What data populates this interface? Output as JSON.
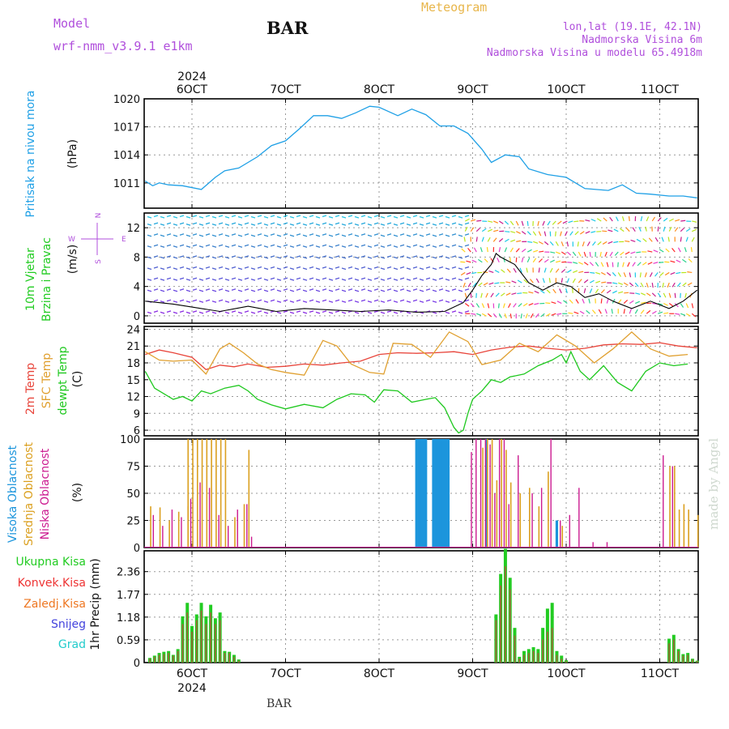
{
  "header": {
    "model_label": "Model",
    "model_name": "wrf-nmm_v3.9.1  e1km",
    "title": "BAR",
    "meteogram": "Meteogram",
    "location": "lon,lat (19.1E, 42.1N)",
    "elevation": "Nadmorska Visina 6m",
    "model_elevation": "Nadmorska Visina u modelu 65.4918m",
    "bottom_label": "BAR",
    "watermark": "made by Angel"
  },
  "colors": {
    "magenta": "#b04fdc",
    "gold": "#e8b64b",
    "pressure": "#1fa0e6",
    "t2m": "#e8443a",
    "sfc": "#e0a030",
    "dewpt": "#1ec81e",
    "high_cloud": "#1c95dc",
    "mid_cloud": "#dba020",
    "low_cloud": "#cc1b90",
    "precip_total": "#22cc22",
    "precip_conv": "#ee3333",
    "precip_frozen": "#ee7722",
    "snow": "#4444dd",
    "hail": "#22cccc"
  },
  "time_axis": {
    "year": "2024",
    "ticks": [
      "6OCT",
      "7OCT",
      "8OCT",
      "9OCT",
      "10OCT",
      "11OCT"
    ]
  },
  "chart_data": [
    {
      "type": "line",
      "name": "pressure",
      "ylabel_lines": [
        "Pritisak na nivou mora",
        "(hPa)"
      ],
      "yticks": [
        "1011",
        "1014",
        "1017",
        "1020"
      ],
      "ylim": [
        1008.3,
        1020
      ],
      "x_unit": "days since 2024-10-06 00:00",
      "x": [
        -0.5,
        -0.42,
        -0.35,
        -0.25,
        -0.1,
        0.1,
        0.25,
        0.35,
        0.5,
        0.7,
        0.85,
        1.0,
        1.15,
        1.3,
        1.45,
        1.6,
        1.75,
        1.9,
        2.0,
        2.2,
        2.35,
        2.5,
        2.65,
        2.8,
        2.95,
        3.1,
        3.2,
        3.35,
        3.5,
        3.6,
        3.8,
        4.0,
        4.2,
        4.45,
        4.6,
        4.75,
        4.9,
        5.1,
        5.25,
        5.4,
        5.52,
        5.65,
        5.75
      ],
      "values": [
        1011.2,
        1010.7,
        1011.0,
        1010.8,
        1010.7,
        1010.3,
        1011.6,
        1012.3,
        1012.6,
        1013.8,
        1015.0,
        1015.5,
        1016.8,
        1018.2,
        1018.2,
        1017.9,
        1018.5,
        1019.2,
        1019.1,
        1018.2,
        1018.9,
        1018.3,
        1017.1,
        1017.1,
        1016.3,
        1014.6,
        1013.2,
        1014.0,
        1013.8,
        1012.5,
        1011.9,
        1011.6,
        1010.4,
        1010.2,
        1010.8,
        1009.9,
        1009.8,
        1009.6,
        1009.6,
        1009.4,
        1009.6,
        1010.2,
        1010.0
      ]
    },
    {
      "type": "line",
      "name": "wind",
      "ylabel_lines": [
        "10m Vjetar",
        "Brzina i Pravac",
        "(m/s)"
      ],
      "compass": [
        "N",
        "W",
        "E",
        "S"
      ],
      "yticks": [
        "0",
        "4",
        "8",
        "12"
      ],
      "ylim": [
        -1,
        14
      ],
      "x": [
        -0.5,
        -0.2,
        0.0,
        0.3,
        0.6,
        0.9,
        1.2,
        1.5,
        1.8,
        2.1,
        2.4,
        2.7,
        2.9,
        3.0,
        3.1,
        3.2,
        3.25,
        3.3,
        3.45,
        3.6,
        3.75,
        3.9,
        4.05,
        4.2,
        4.35,
        4.5,
        4.7,
        4.9,
        5.1,
        5.25,
        5.4,
        5.6,
        5.75
      ],
      "values": [
        2.0,
        1.6,
        1.2,
        0.6,
        1.3,
        0.6,
        1.0,
        0.8,
        0.6,
        0.8,
        0.5,
        0.6,
        1.8,
        3.5,
        5.5,
        7.0,
        8.5,
        8.0,
        7.0,
        4.5,
        3.5,
        4.5,
        4.0,
        2.5,
        3.0,
        2.0,
        1.0,
        2.0,
        1.0,
        2.0,
        3.5,
        2.0,
        3.0
      ],
      "barb_rows": [
        0.5,
        2,
        3.5,
        5,
        6.5,
        8,
        9.5,
        11,
        12.5,
        13.5
      ]
    },
    {
      "type": "line",
      "name": "temperature",
      "ylabel_lines": [
        "2m Temp",
        "SFC Temp",
        "dewpt Temp",
        "(C)"
      ],
      "yticks": [
        "6",
        "9",
        "12",
        "15",
        "18",
        "21",
        "24"
      ],
      "ylim": [
        5,
        24.5
      ],
      "series": [
        {
          "name": "2m Temp",
          "color_key": "t2m",
          "x": [
            -0.5,
            -0.35,
            -0.2,
            0.0,
            0.15,
            0.3,
            0.45,
            0.6,
            0.8,
            1.0,
            1.2,
            1.4,
            1.6,
            1.8,
            2.0,
            2.2,
            2.4,
            2.6,
            2.8,
            3.0,
            3.2,
            3.4,
            3.6,
            3.8,
            4.0,
            4.2,
            4.4,
            4.6,
            4.8,
            5.0,
            5.2,
            5.4,
            5.6,
            5.75
          ],
          "values": [
            19.5,
            20.3,
            19.8,
            19.0,
            16.8,
            17.6,
            17.3,
            17.8,
            17.2,
            17.4,
            17.8,
            17.6,
            18.0,
            18.3,
            19.5,
            19.8,
            19.7,
            19.8,
            20.0,
            19.5,
            20.3,
            20.8,
            21.0,
            20.6,
            20.3,
            20.6,
            21.2,
            21.4,
            21.3,
            21.6,
            21.0,
            20.7,
            21.4,
            22.0
          ]
        },
        {
          "name": "SFC Temp",
          "color_key": "sfc",
          "x": [
            -0.5,
            -0.35,
            -0.2,
            0.0,
            0.15,
            0.3,
            0.4,
            0.55,
            0.7,
            0.85,
            1.0,
            1.2,
            1.4,
            1.55,
            1.7,
            1.9,
            2.05,
            2.15,
            2.35,
            2.55,
            2.75,
            2.95,
            3.1,
            3.3,
            3.5,
            3.7,
            3.9,
            4.1,
            4.3,
            4.5,
            4.7,
            4.9,
            5.1,
            5.3,
            5.5,
            5.65,
            5.75
          ],
          "values": [
            20.0,
            18.5,
            18.3,
            18.5,
            16.0,
            20.5,
            21.5,
            19.8,
            17.8,
            16.8,
            16.3,
            15.8,
            22.0,
            21.0,
            17.8,
            16.3,
            16.0,
            21.5,
            21.3,
            19.0,
            23.5,
            21.8,
            17.7,
            18.5,
            21.5,
            20.0,
            23.0,
            21.0,
            18.0,
            20.5,
            23.5,
            20.5,
            19.2,
            19.5,
            22.3,
            20.2,
            23.0
          ]
        },
        {
          "name": "dewpt Temp",
          "color_key": "dewpt",
          "x": [
            -0.5,
            -0.4,
            -0.3,
            -0.2,
            -0.1,
            0.0,
            0.1,
            0.2,
            0.35,
            0.5,
            0.6,
            0.7,
            0.85,
            1.0,
            1.2,
            1.4,
            1.55,
            1.7,
            1.85,
            1.95,
            2.05,
            2.2,
            2.35,
            2.5,
            2.6,
            2.7,
            2.8,
            2.85,
            2.9,
            2.95,
            3.0,
            3.1,
            3.2,
            3.3,
            3.4,
            3.55,
            3.7,
            3.85,
            3.95,
            4.0,
            4.05,
            4.15,
            4.25,
            4.4,
            4.55,
            4.7,
            4.85,
            5.0,
            5.15,
            5.3,
            5.5,
            5.75
          ],
          "values": [
            16.5,
            13.5,
            12.5,
            11.5,
            12.0,
            11.2,
            13.0,
            12.5,
            13.5,
            14.0,
            13.0,
            11.5,
            10.5,
            9.8,
            10.6,
            10.0,
            11.5,
            12.5,
            12.3,
            11.0,
            13.2,
            13.0,
            11.0,
            11.5,
            11.8,
            10.0,
            6.5,
            5.5,
            6.0,
            9.0,
            11.5,
            13.0,
            15.0,
            14.5,
            15.5,
            16.0,
            17.5,
            18.5,
            19.5,
            18.0,
            20.0,
            16.5,
            15.0,
            17.5,
            14.5,
            13.0,
            16.5,
            18.0,
            17.5,
            17.8,
            18.2,
            18.0
          ]
        }
      ]
    },
    {
      "type": "bar",
      "name": "clouds",
      "ylabel_lines": [
        "Visoka Oblacnost",
        "Srednja Oblacnost",
        "Niska Oblacnost",
        "(%)"
      ],
      "yticks": [
        "0",
        "25",
        "50",
        "75",
        "100"
      ],
      "ylim": [
        0,
        100
      ],
      "high_x": [
        2.4,
        2.42,
        2.44,
        2.46,
        2.48,
        2.5,
        2.58,
        2.6,
        2.62,
        2.64,
        2.66,
        2.68,
        2.7,
        2.72,
        2.74,
        3.15,
        3.9
      ],
      "high_values": [
        100,
        100,
        100,
        100,
        100,
        100,
        100,
        100,
        100,
        100,
        100,
        100,
        100,
        100,
        100,
        100,
        25
      ],
      "mid_x": [
        -0.45,
        -0.35,
        -0.25,
        -0.15,
        -0.05,
        -0.05,
        0.0,
        0.05,
        0.1,
        0.15,
        0.2,
        0.25,
        0.3,
        0.35,
        0.45,
        0.55,
        0.6,
        3.1,
        3.15,
        3.2,
        3.25,
        3.3,
        3.35,
        3.4,
        3.5,
        3.6,
        3.7,
        3.8,
        3.95,
        5.1,
        5.15,
        5.2,
        5.25,
        5.3,
        5.4,
        5.5,
        5.6,
        5.7
      ],
      "mid_values": [
        38,
        37,
        25,
        33,
        38,
        100,
        100,
        100,
        100,
        100,
        100,
        100,
        100,
        100,
        28,
        40,
        90,
        92,
        100,
        100,
        62,
        100,
        90,
        60,
        50,
        55,
        38,
        70,
        20,
        75,
        75,
        35,
        40,
        35,
        30,
        35,
        40,
        25
      ],
      "low_x": [
        -0.4,
        -0.3,
        -0.2,
        -0.1,
        0.0,
        0.1,
        0.2,
        0.3,
        0.4,
        0.5,
        0.6,
        0.65,
        3.0,
        3.05,
        3.1,
        3.15,
        3.2,
        3.25,
        3.3,
        3.35,
        3.4,
        3.5,
        3.65,
        3.75,
        3.85,
        3.95,
        4.05,
        4.15,
        4.3,
        4.45,
        5.05,
        5.15,
        5.6
      ],
      "low_values": [
        30,
        20,
        35,
        28,
        45,
        60,
        55,
        30,
        20,
        35,
        40,
        10,
        88,
        100,
        100,
        100,
        95,
        50,
        100,
        100,
        40,
        85,
        50,
        55,
        100,
        25,
        30,
        55,
        5,
        5,
        85,
        75,
        55
      ]
    },
    {
      "type": "bar",
      "name": "precip",
      "ylabel_lines": [
        "1hr Precip (mm)"
      ],
      "legend": [
        "Ukupna Kisa",
        "Konvek.Kisa",
        "Zaledj.Kisa",
        "Snijeg",
        "Grad"
      ],
      "yticks": [
        "0",
        "0.59",
        "1.18",
        "1.77",
        "2.36"
      ],
      "ylim": [
        0,
        2.9
      ],
      "x": [
        -0.45,
        -0.4,
        -0.35,
        -0.3,
        -0.25,
        -0.2,
        -0.15,
        -0.1,
        -0.05,
        0.0,
        0.05,
        0.1,
        0.15,
        0.2,
        0.25,
        0.3,
        0.35,
        0.4,
        0.45,
        0.5,
        3.25,
        3.3,
        3.35,
        3.4,
        3.45,
        3.5,
        3.55,
        3.6,
        3.65,
        3.7,
        3.75,
        3.8,
        3.85,
        3.9,
        3.95,
        4.0,
        5.1,
        5.15,
        5.2,
        5.25,
        5.3,
        5.35,
        5.4
      ],
      "values": [
        0.12,
        0.18,
        0.25,
        0.28,
        0.3,
        0.2,
        0.35,
        1.2,
        1.55,
        0.95,
        1.25,
        1.55,
        1.2,
        1.5,
        1.15,
        1.3,
        0.3,
        0.28,
        0.2,
        0.08,
        1.25,
        2.3,
        2.95,
        2.2,
        0.9,
        0.15,
        0.3,
        0.35,
        0.4,
        0.35,
        0.9,
        1.4,
        1.55,
        0.3,
        0.18,
        0.06,
        0.62,
        0.72,
        0.35,
        0.22,
        0.25,
        0.1,
        0.05
      ],
      "conv_values": [
        0.1,
        0.15,
        0.2,
        0.22,
        0.25,
        0.18,
        0.3,
        1.0,
        1.3,
        0.8,
        1.1,
        1.35,
        1.0,
        1.3,
        1.0,
        1.1,
        0.25,
        0.25,
        0.15,
        0.05,
        1.1,
        2.0,
        2.5,
        1.9,
        0.7,
        0.1,
        0.2,
        0.25,
        0.3,
        0.25,
        0.6,
        0.8,
        0.9,
        0.2,
        0.1,
        0.04,
        0.5,
        0.6,
        0.3,
        0.18,
        0.2,
        0.08,
        0.04
      ]
    }
  ]
}
